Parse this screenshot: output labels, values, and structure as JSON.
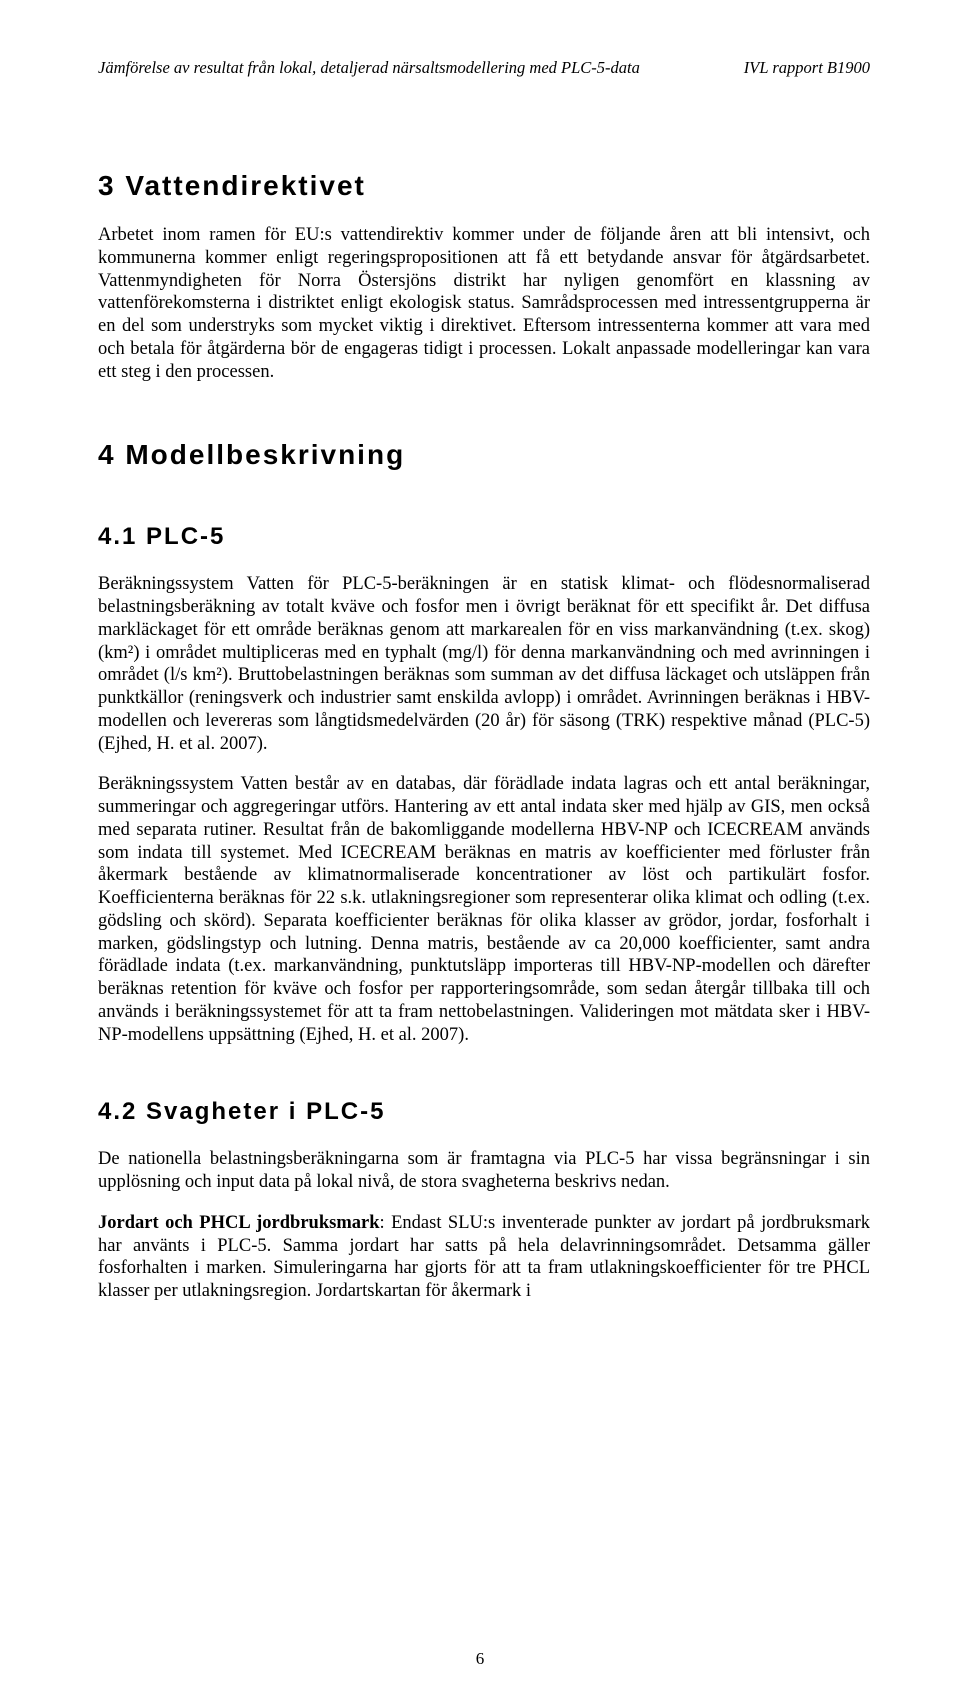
{
  "header": {
    "left": "Jämförelse av resultat från lokal, detaljerad närsaltsmodellering med PLC-5-data",
    "right": "IVL rapport B1900"
  },
  "sections": {
    "s3": {
      "title": "3  Vattendirektivet",
      "p1": "Arbetet inom ramen för EU:s vattendirektiv kommer under de följande åren att bli intensivt, och kommunerna kommer enligt regeringspropositionen att få ett betydande ansvar för åtgärdsarbetet. Vattenmyndigheten för Norra Östersjöns distrikt har nyligen genomfört en klassning av vattenförekomsterna i distriktet enligt ekologisk status. Samrådsprocessen med intressentgrupperna är en del som understryks som mycket viktig i direktivet. Eftersom intressenterna kommer att vara med och betala för åtgärderna bör de engageras tidigt i processen. Lokalt anpassade modelleringar kan vara ett steg i den processen."
    },
    "s4": {
      "title": "4  Modellbeskrivning"
    },
    "s41": {
      "title": "4.1   PLC-5",
      "p1": "Beräkningssystem Vatten för PLC-5-beräkningen är en statisk klimat- och flödesnormaliserad belastningsberäkning av totalt kväve och fosfor men i övrigt beräknat för ett specifikt år. Det diffusa markläckaget för ett område beräknas genom att markarealen för en viss markanvändning (t.ex. skog) (km²) i området multipliceras med en typhalt (mg/l) för denna markanvändning och med avrinningen i området (l/s km²). Bruttobelastningen beräknas som summan av det diffusa läckaget och utsläppen från punktkällor (reningsverk och industrier samt enskilda avlopp) i området. Avrinningen beräknas i HBV-modellen och levereras som långtidsmedelvärden (20 år) för säsong (TRK) respektive månad (PLC-5) (Ejhed, H. et al. 2007).",
      "p2": "Beräkningssystem Vatten består av en databas, där förädlade indata lagras och ett antal beräkningar, summeringar och aggregeringar utförs. Hantering av ett antal indata sker med hjälp av GIS, men också med separata rutiner. Resultat från de bakomliggande modellerna HBV-NP och ICECREAM används som indata till systemet. Med ICECREAM beräknas en matris av koefficienter med förluster från åkermark bestående av klimatnormaliserade koncentrationer av löst och partikulärt fosfor. Koefficienterna beräknas för 22 s.k. utlakningsregioner som representerar olika klimat och odling (t.ex. gödsling och skörd). Separata koefficienter beräknas för olika klasser av grödor, jordar, fosforhalt i marken, gödslingstyp och lutning. Denna matris, bestående av ca 20,000 koefficienter, samt andra förädlade indata (t.ex. markanvändning, punktutsläpp importeras till HBV-NP-modellen och därefter beräknas retention för kväve och fosfor per rapporteringsområde, som sedan återgår tillbaka till och används i beräkningssystemet för att ta fram nettobelastningen. Valideringen mot mätdata sker i HBV-NP-modellens uppsättning (Ejhed, H. et al. 2007)."
    },
    "s42": {
      "title": "4.2   Svagheter i PLC-5",
      "p1": "De nationella belastningsberäkningarna som är framtagna via PLC-5 har vissa begränsningar i sin upplösning och input data på lokal nivå, de stora svagheterna beskrivs nedan.",
      "p2_lead": "Jordart och PHCL jordbruksmark",
      "p2_rest": ": Endast SLU:s inventerade punkter av jordart på jordbruksmark har använts i PLC-5. Samma jordart har satts på hela delavrinningsområdet. Detsamma gäller fosforhalten i marken. Simuleringarna har gjorts för att ta fram utlakningskoefficienter för tre PHCL klasser per utlakningsregion. Jordartskartan för åkermark i"
    }
  },
  "page_number": "6"
}
